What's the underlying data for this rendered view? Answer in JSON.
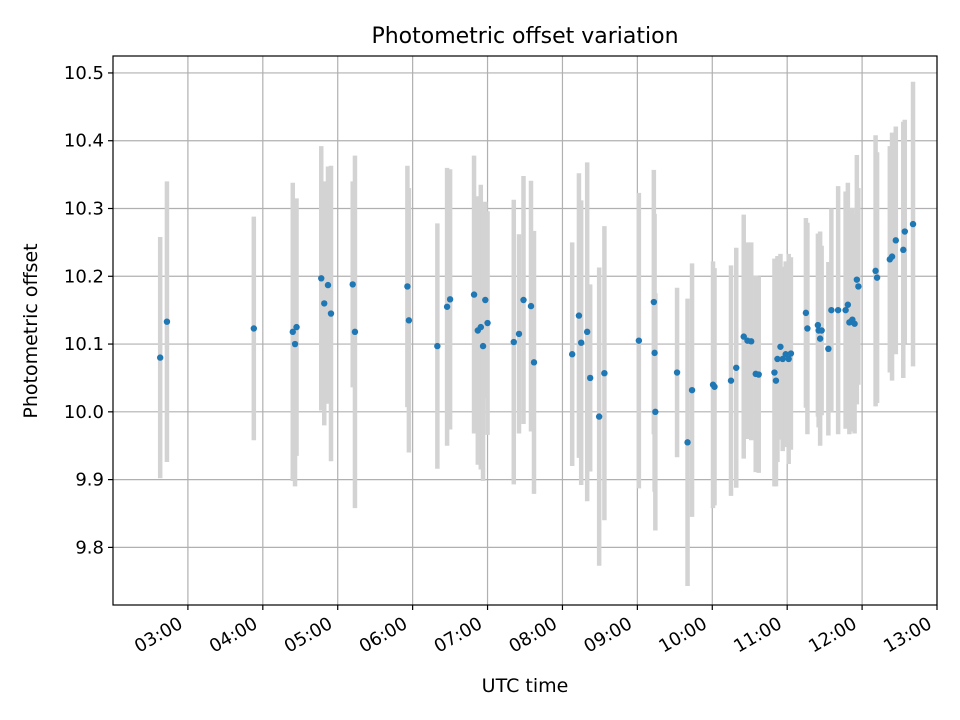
{
  "chart_data": {
    "type": "scatter",
    "title": "Photometric offset variation",
    "xlabel": "UTC time",
    "ylabel": "Photometric offset",
    "x_unit": "UTC hours",
    "xlim": [
      2.0,
      13.0
    ],
    "ylim": [
      9.715,
      10.525
    ],
    "x_ticks": [
      3,
      4,
      5,
      6,
      7,
      8,
      9,
      10,
      11,
      12,
      13
    ],
    "x_tick_labels": [
      "03:00",
      "04:00",
      "05:00",
      "06:00",
      "07:00",
      "08:00",
      "09:00",
      "10:00",
      "11:00",
      "12:00",
      "13:00"
    ],
    "y_ticks": [
      9.8,
      9.9,
      10.0,
      10.1,
      10.2,
      10.3,
      10.4,
      10.5
    ],
    "y_tick_labels": [
      "9.8",
      "9.9",
      "10.0",
      "10.1",
      "10.2",
      "10.3",
      "10.4",
      "10.5"
    ],
    "grid": true,
    "colors": {
      "points": "#1f77b4",
      "errorbars": "#d3d3d3",
      "grid": "#b0b0b0"
    },
    "series": [
      {
        "x": [
          2.63,
          2.72,
          3.88,
          4.4,
          4.43,
          4.45,
          4.78,
          4.82,
          4.87,
          4.91,
          5.2,
          5.23,
          5.93,
          5.95,
          6.33,
          6.46,
          6.5,
          6.82,
          6.87,
          6.91,
          6.94,
          6.97,
          7.0,
          7.35,
          7.42,
          7.48,
          7.58,
          7.62,
          8.13,
          8.22,
          8.25,
          8.33,
          8.37,
          8.49,
          8.56,
          9.02,
          9.22,
          9.23,
          9.24,
          9.53,
          9.67,
          9.73,
          10.01,
          10.03,
          10.25,
          10.32,
          10.42,
          10.47,
          10.52,
          10.58,
          10.62,
          10.83,
          10.85,
          10.87,
          10.91,
          10.94,
          10.98,
          11.02,
          11.05,
          11.25,
          11.27,
          11.41,
          11.42,
          11.44,
          11.46,
          11.55,
          11.59,
          11.68,
          11.78,
          11.81,
          11.83,
          11.87,
          11.9,
          11.93,
          11.95,
          12.18,
          12.2,
          12.37,
          12.4,
          12.45,
          12.55,
          12.57,
          12.68
        ],
        "y": [
          10.08,
          10.133,
          10.123,
          10.118,
          10.1,
          10.125,
          10.197,
          10.16,
          10.187,
          10.145,
          10.188,
          10.118,
          10.185,
          10.135,
          10.097,
          10.155,
          10.166,
          10.173,
          10.12,
          10.125,
          10.097,
          10.165,
          10.131,
          10.103,
          10.115,
          10.165,
          10.156,
          10.073,
          10.085,
          10.142,
          10.102,
          10.118,
          10.05,
          9.993,
          10.057,
          10.105,
          10.162,
          10.087,
          10.0,
          10.058,
          9.955,
          10.032,
          10.04,
          10.037,
          10.046,
          10.065,
          10.111,
          10.105,
          10.104,
          10.056,
          10.055,
          10.058,
          10.046,
          10.078,
          10.096,
          10.078,
          10.085,
          10.078,
          10.086,
          10.146,
          10.123,
          10.128,
          10.12,
          10.108,
          10.12,
          10.093,
          10.15,
          10.15,
          10.15,
          10.158,
          10.132,
          10.136,
          10.13,
          10.195,
          10.185,
          10.208,
          10.198,
          10.225,
          10.229,
          10.253,
          10.239,
          10.266,
          10.277
        ],
        "yerr": [
          0.178,
          0.207,
          0.165,
          0.22,
          0.21,
          0.19,
          0.195,
          0.18,
          0.175,
          0.218,
          0.152,
          0.26,
          0.178,
          0.195,
          0.181,
          0.205,
          0.192,
          0.205,
          0.198,
          0.21,
          0.199,
          0.145,
          0.165,
          0.21,
          0.147,
          0.183,
          0.185,
          0.194,
          0.165,
          0.21,
          0.21,
          0.25,
          0.138,
          0.22,
          0.217,
          0.218,
          0.195,
          0.205,
          0.175,
          0.125,
          0.212,
          0.187,
          0.182,
          0.175,
          0.17,
          0.177,
          0.18,
          0.145,
          0.146,
          0.145,
          0.145,
          0.168,
          0.156,
          0.152,
          0.137,
          0.136,
          0.137,
          0.155,
          0.142,
          0.14,
          0.156,
          0.135,
          0.143,
          0.158,
          0.125,
          0.128,
          0.15,
          0.183,
          0.175,
          0.18,
          0.165,
          0.165,
          0.162,
          0.184,
          0.145,
          0.2,
          0.185,
          0.167,
          0.183,
          0.168,
          0.189,
          0.165,
          0.21
        ]
      }
    ]
  }
}
